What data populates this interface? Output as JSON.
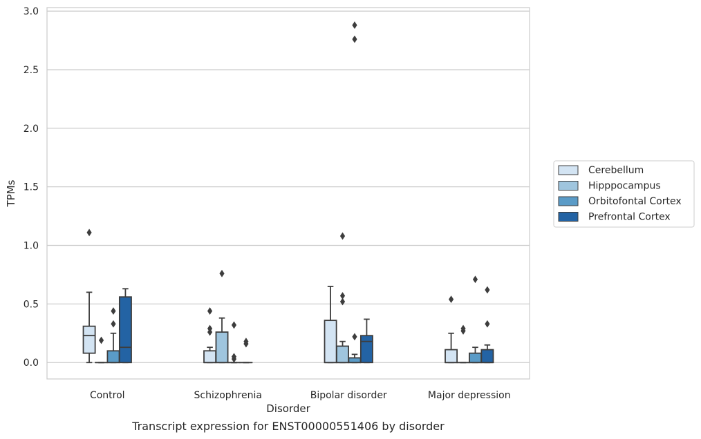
{
  "chart_data": {
    "type": "box",
    "title": "",
    "caption": "Transcript expression for ENST00000551406 by disorder",
    "xlabel": "Disorder",
    "ylabel": "TPMs",
    "ylim": [
      -0.14,
      3.03
    ],
    "yticks": [
      "0.0",
      "0.5",
      "1.0",
      "1.5",
      "2.0",
      "2.5",
      "3.0"
    ],
    "grid": "horizontal",
    "legend_position": "right",
    "categories": [
      "Control",
      "Schizophrenia",
      "Bipolar disorder",
      "Major depression"
    ],
    "series": [
      {
        "name": "Cerebellum",
        "color": "#d3e4f3",
        "boxes": [
          {
            "whisker_low": 0.0,
            "q1": 0.08,
            "median": 0.23,
            "q3": 0.31,
            "whisker_high": 0.6,
            "outliers": [
              1.11
            ]
          },
          {
            "whisker_low": 0.0,
            "q1": 0.0,
            "median": 0.0,
            "q3": 0.1,
            "whisker_high": 0.13,
            "outliers": [
              0.26,
              0.29,
              0.44
            ]
          },
          {
            "whisker_low": 0.0,
            "q1": 0.0,
            "median": 0.0,
            "q3": 0.36,
            "whisker_high": 0.65,
            "outliers": []
          },
          {
            "whisker_low": 0.0,
            "q1": 0.0,
            "median": 0.0,
            "q3": 0.11,
            "whisker_high": 0.25,
            "outliers": [
              0.54
            ]
          }
        ]
      },
      {
        "name": "Hipppocampus",
        "color": "#9fc5de",
        "boxes": [
          {
            "whisker_low": 0.0,
            "q1": 0.0,
            "median": 0.0,
            "q3": 0.0,
            "whisker_high": 0.0,
            "outliers": [
              0.19
            ]
          },
          {
            "whisker_low": 0.0,
            "q1": 0.0,
            "median": 0.0,
            "q3": 0.26,
            "whisker_high": 0.38,
            "outliers": [
              0.76
            ]
          },
          {
            "whisker_low": 0.0,
            "q1": 0.0,
            "median": 0.0,
            "q3": 0.14,
            "whisker_high": 0.18,
            "outliers": [
              0.52,
              0.57,
              1.08
            ]
          },
          {
            "whisker_low": 0.0,
            "q1": 0.0,
            "median": 0.0,
            "q3": 0.0,
            "whisker_high": 0.0,
            "outliers": [
              0.27,
              0.29
            ]
          }
        ]
      },
      {
        "name": "Orbitofontal Cortex",
        "color": "#5a9bc7",
        "boxes": [
          {
            "whisker_low": 0.0,
            "q1": 0.0,
            "median": 0.0,
            "q3": 0.1,
            "whisker_high": 0.25,
            "outliers": [
              0.33,
              0.44
            ]
          },
          {
            "whisker_low": 0.0,
            "q1": 0.0,
            "median": 0.0,
            "q3": 0.0,
            "whisker_high": 0.0,
            "outliers": [
              0.03,
              0.05,
              0.32
            ]
          },
          {
            "whisker_low": 0.0,
            "q1": 0.0,
            "median": 0.0,
            "q3": 0.04,
            "whisker_high": 0.07,
            "outliers": [
              0.22,
              2.76,
              2.88
            ]
          },
          {
            "whisker_low": 0.0,
            "q1": 0.0,
            "median": 0.0,
            "q3": 0.08,
            "whisker_high": 0.13,
            "outliers": [
              0.71
            ]
          }
        ]
      },
      {
        "name": "Prefrontal Cortex",
        "color": "#2363a4",
        "boxes": [
          {
            "whisker_low": 0.0,
            "q1": 0.0,
            "median": 0.13,
            "q3": 0.56,
            "whisker_high": 0.63,
            "outliers": []
          },
          {
            "whisker_low": 0.0,
            "q1": 0.0,
            "median": 0.0,
            "q3": 0.0,
            "whisker_high": 0.0,
            "outliers": [
              0.16,
              0.18
            ]
          },
          {
            "whisker_low": 0.0,
            "q1": 0.0,
            "median": 0.18,
            "q3": 0.23,
            "whisker_high": 0.37,
            "outliers": []
          },
          {
            "whisker_low": 0.0,
            "q1": 0.0,
            "median": 0.0,
            "q3": 0.11,
            "whisker_high": 0.15,
            "outliers": [
              0.33,
              0.62
            ]
          }
        ]
      }
    ]
  }
}
